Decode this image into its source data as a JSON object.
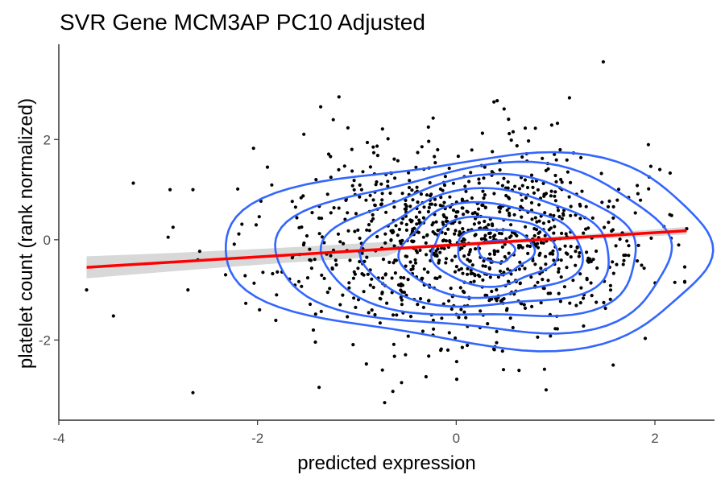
{
  "chart_data": {
    "type": "scatter",
    "title": "SVR Gene MCM3AP PC10 Adjusted",
    "xlabel": "predicted expression",
    "ylabel": "platelet count (rank normalized)",
    "xlim": [
      -4,
      2.6
    ],
    "ylim": [
      -3.6,
      3.9
    ],
    "x_ticks": [
      -4,
      -2,
      0,
      2
    ],
    "x_tick_labels": [
      "-4",
      "-2",
      "0",
      "2"
    ],
    "y_ticks": [
      -2,
      0,
      2
    ],
    "y_tick_labels": [
      "-2",
      "0",
      "2"
    ],
    "grid": false,
    "legend": "none",
    "colors": {
      "points": "#000000",
      "fit_line": "#ff0000",
      "confidence_band": "#bebebe",
      "density_contours": "#3366ff"
    },
    "n_points": 1000,
    "point_seed": 20240611,
    "point_distribution": {
      "x_mean": 0.05,
      "x_sd": 0.85,
      "y_mean": -0.05,
      "y_sd": 0.95
    },
    "outlier_points": [
      {
        "x": 1.48,
        "y": 3.55
      },
      {
        "x": -2.65,
        "y": -3.05
      },
      {
        "x": -0.72,
        "y": -3.25
      },
      {
        "x": -3.72,
        "y": -1.0
      },
      {
        "x": -3.45,
        "y": -1.52
      },
      {
        "x": -3.25,
        "y": 1.13
      },
      {
        "x": -2.88,
        "y": 1.0
      },
      {
        "x": -2.65,
        "y": 1.0
      },
      {
        "x": -2.85,
        "y": 0.25
      },
      {
        "x": -2.9,
        "y": 0.05
      },
      {
        "x": -2.7,
        "y": -1.0
      },
      {
        "x": -1.18,
        "y": 2.85
      },
      {
        "x": 0.38,
        "y": 2.75
      },
      {
        "x": 2.32,
        "y": 0.22
      },
      {
        "x": 2.2,
        "y": -0.85
      },
      {
        "x": 2.15,
        "y": 0.5
      },
      {
        "x": 1.58,
        "y": -2.5
      },
      {
        "x": -0.55,
        "y": -2.85
      },
      {
        "x": -1.9,
        "y": 1.45
      }
    ],
    "regression": {
      "x_start": -3.72,
      "x_end": 2.32,
      "y_start": -0.55,
      "y_end": 0.18,
      "ci_start": 0.11,
      "ci_mid": 0.035,
      "ci_end": 0.075
    },
    "density_contours": {
      "center_x": 0.42,
      "center_y": -0.22,
      "contours": [
        {
          "x_extent": 0.18,
          "y_extent": 0.22
        },
        {
          "x_extent": 0.38,
          "y_extent": 0.45
        },
        {
          "x_extent": 0.62,
          "y_extent": 0.68
        },
        {
          "x_extent": 0.9,
          "y_extent": 0.92
        },
        {
          "x_extent": 1.22,
          "y_extent": 1.15
        },
        {
          "x_extent": 1.55,
          "y_extent": 1.4
        },
        {
          "x_extent": 1.95,
          "y_extent": 1.65
        },
        {
          "x_extent": 2.4,
          "y_extent": 1.9
        }
      ]
    }
  }
}
